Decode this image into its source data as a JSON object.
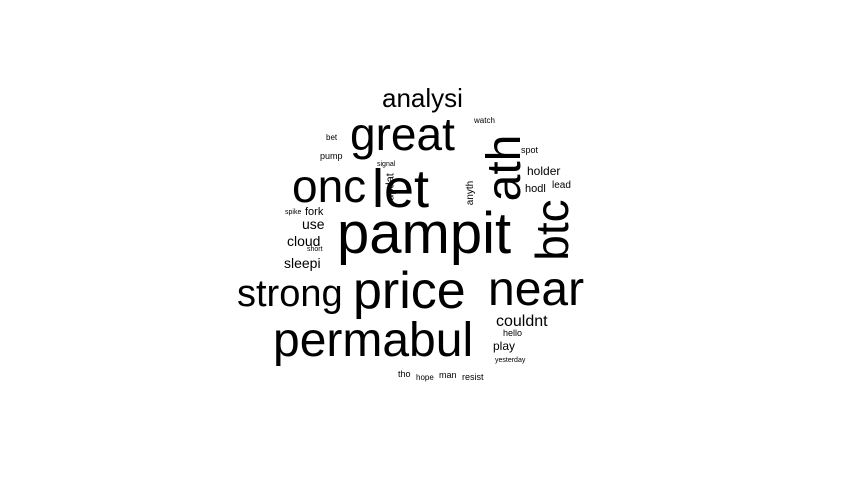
{
  "words": [
    {
      "text": "pampit"
    },
    {
      "text": "price"
    },
    {
      "text": "permabul"
    },
    {
      "text": "near"
    },
    {
      "text": "let"
    },
    {
      "text": "ath"
    },
    {
      "text": "great"
    },
    {
      "text": "onc"
    },
    {
      "text": "btc"
    },
    {
      "text": "strong"
    },
    {
      "text": "analysi"
    },
    {
      "text": "couldnt"
    },
    {
      "text": "cloud"
    },
    {
      "text": "sleepi"
    },
    {
      "text": "use"
    },
    {
      "text": "holder"
    },
    {
      "text": "play"
    },
    {
      "text": "fork"
    },
    {
      "text": "hodl"
    },
    {
      "text": "updat"
    },
    {
      "text": "anyth"
    },
    {
      "text": "lead"
    },
    {
      "text": "spot"
    },
    {
      "text": "pump"
    },
    {
      "text": "tho"
    },
    {
      "text": "man"
    },
    {
      "text": "resist"
    },
    {
      "text": "hello"
    },
    {
      "text": "bet"
    },
    {
      "text": "watch"
    },
    {
      "text": "signal"
    },
    {
      "text": "short"
    },
    {
      "text": "spike"
    },
    {
      "text": "yesterday"
    },
    {
      "text": "hope"
    }
  ]
}
